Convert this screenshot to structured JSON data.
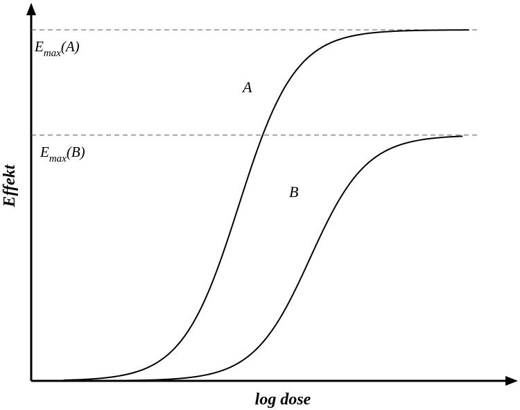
{
  "chart_data": {
    "type": "line",
    "title": "",
    "xlabel": "log dose",
    "ylabel": "Effekt",
    "grid": false,
    "legend": "none",
    "series": [
      {
        "name": "A",
        "emax": 1.0,
        "ec50_log": 3.2,
        "hill": 1.0
      },
      {
        "name": "B",
        "emax": 0.7,
        "ec50_log": 4.3,
        "hill": 1.0
      }
    ],
    "reference_lines": [
      {
        "label_main": "E",
        "label_sub": "max",
        "label_tail": "(A)",
        "y": 1.0
      },
      {
        "label_main": "E",
        "label_sub": "max",
        "label_tail": "(B)",
        "y": 0.7
      }
    ],
    "xlim": [
      0,
      7
    ],
    "ylim": [
      0,
      1.0
    ],
    "colors": {
      "curve": "#000000",
      "reference": "#555555"
    }
  }
}
